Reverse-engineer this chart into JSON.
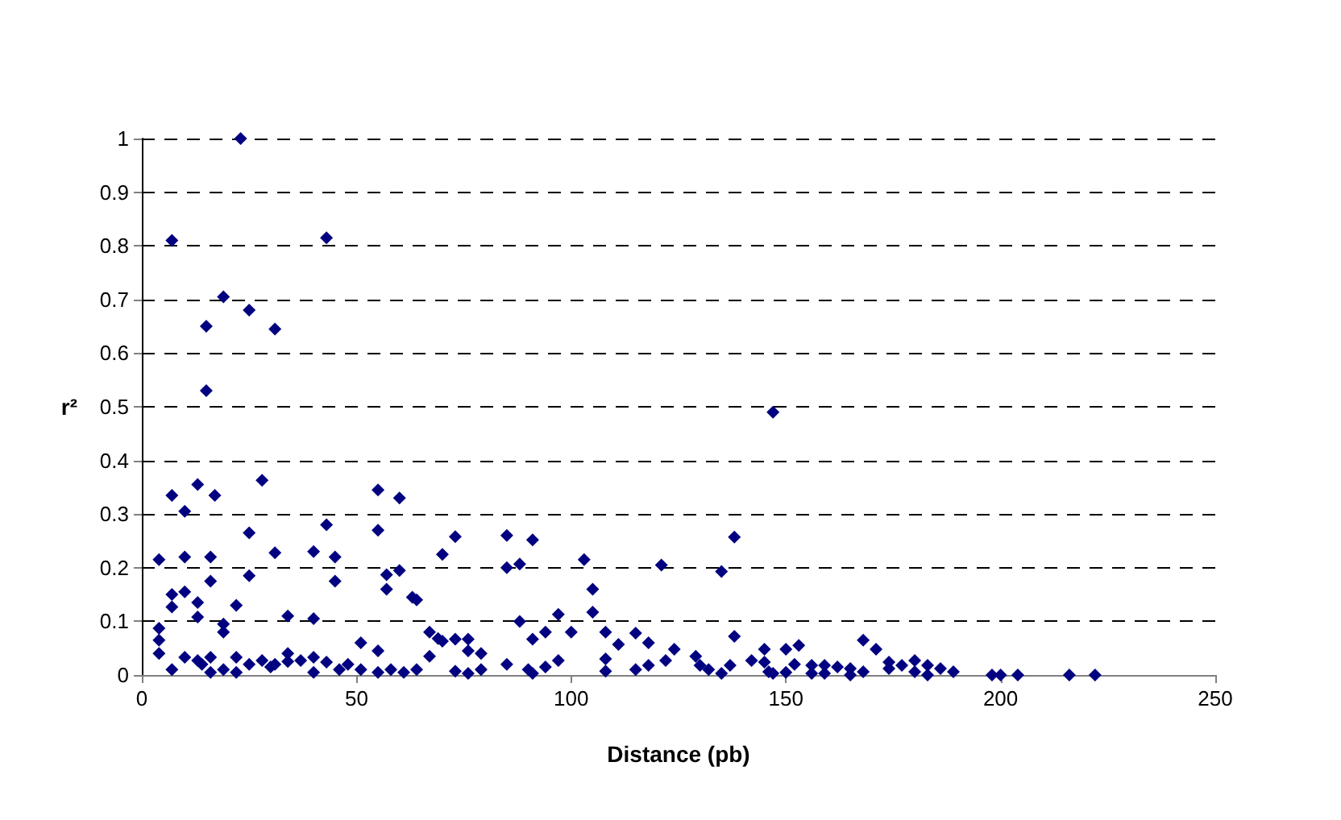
{
  "chart_data": {
    "type": "scatter",
    "xlabel": "Distance (pb)",
    "ylabel": "r²",
    "xlim": [
      0,
      250
    ],
    "xticks": [
      0,
      50,
      100,
      150,
      200,
      250
    ],
    "ylim": [
      0,
      1
    ],
    "yticks": [
      0,
      0.1,
      0.2,
      0.3,
      0.4,
      0.5,
      0.6,
      0.7,
      0.8,
      0.9,
      1
    ],
    "grid": "y",
    "marker": "diamond",
    "series": [
      {
        "color": "#000080",
        "x": [
          23,
          7,
          43,
          19,
          25,
          31,
          15,
          15,
          147,
          28,
          7,
          13,
          17,
          10,
          55,
          60,
          25,
          43,
          55,
          4,
          10,
          16,
          31,
          40,
          45,
          25,
          16,
          45,
          57,
          60,
          63,
          7,
          7,
          10,
          13,
          22,
          13,
          19,
          19,
          4,
          4,
          4,
          7,
          10,
          13,
          14,
          16,
          16,
          19,
          22,
          22,
          25,
          28,
          30,
          31,
          34,
          34,
          34,
          37,
          40,
          40,
          43,
          40,
          46,
          48,
          51,
          51,
          55,
          55,
          58,
          57,
          64,
          67,
          69,
          67,
          70,
          61,
          64,
          73,
          70,
          73,
          76,
          76,
          79,
          79,
          73,
          76,
          85,
          85,
          88,
          91,
          88,
          91,
          94,
          97,
          100,
          85,
          90,
          91,
          94,
          97,
          103,
          105,
          105,
          108,
          108,
          108,
          111,
          115,
          118,
          115,
          118,
          121,
          124,
          122,
          129,
          130,
          132,
          135,
          135,
          138,
          138,
          137,
          142,
          145,
          145,
          147,
          150,
          153,
          152,
          146,
          150,
          156,
          156,
          159,
          159,
          162,
          165,
          165,
          168,
          168,
          171,
          174,
          174,
          177,
          180,
          180,
          183,
          183,
          186,
          189,
          198,
          200,
          204,
          216,
          222
        ],
        "values": [
          1.0,
          0.81,
          0.815,
          0.705,
          0.68,
          0.645,
          0.65,
          0.53,
          0.49,
          0.363,
          0.335,
          0.355,
          0.335,
          0.305,
          0.345,
          0.33,
          0.265,
          0.28,
          0.27,
          0.215,
          0.22,
          0.22,
          0.228,
          0.23,
          0.22,
          0.185,
          0.175,
          0.175,
          0.187,
          0.195,
          0.145,
          0.15,
          0.127,
          0.155,
          0.135,
          0.13,
          0.108,
          0.08,
          0.095,
          0.087,
          0.065,
          0.04,
          0.01,
          0.033,
          0.027,
          0.02,
          0.033,
          0.005,
          0.01,
          0.033,
          0.005,
          0.02,
          0.027,
          0.015,
          0.02,
          0.11,
          0.04,
          0.025,
          0.027,
          0.105,
          0.033,
          0.024,
          0.005,
          0.01,
          0.02,
          0.01,
          0.06,
          0.045,
          0.005,
          0.01,
          0.16,
          0.14,
          0.08,
          0.068,
          0.035,
          0.225,
          0.005,
          0.01,
          0.258,
          0.063,
          0.067,
          0.067,
          0.045,
          0.04,
          0.01,
          0.007,
          0.003,
          0.26,
          0.2,
          0.207,
          0.252,
          0.1,
          0.067,
          0.08,
          0.113,
          0.08,
          0.02,
          0.01,
          0.003,
          0.015,
          0.027,
          0.215,
          0.16,
          0.117,
          0.08,
          0.03,
          0.007,
          0.057,
          0.078,
          0.06,
          0.01,
          0.018,
          0.205,
          0.048,
          0.027,
          0.035,
          0.018,
          0.01,
          0.003,
          0.193,
          0.257,
          0.072,
          0.018,
          0.027,
          0.048,
          0.024,
          0.003,
          0.048,
          0.055,
          0.02,
          0.006,
          0.005,
          0.018,
          0.003,
          0.018,
          0.003,
          0.015,
          0.012,
          0.0,
          0.006,
          0.065,
          0.048,
          0.024,
          0.012,
          0.018,
          0.027,
          0.006,
          0.018,
          0.0,
          0.012,
          0.006,
          0.0,
          0.0,
          0.0,
          0.0,
          0.0
        ]
      }
    ]
  }
}
